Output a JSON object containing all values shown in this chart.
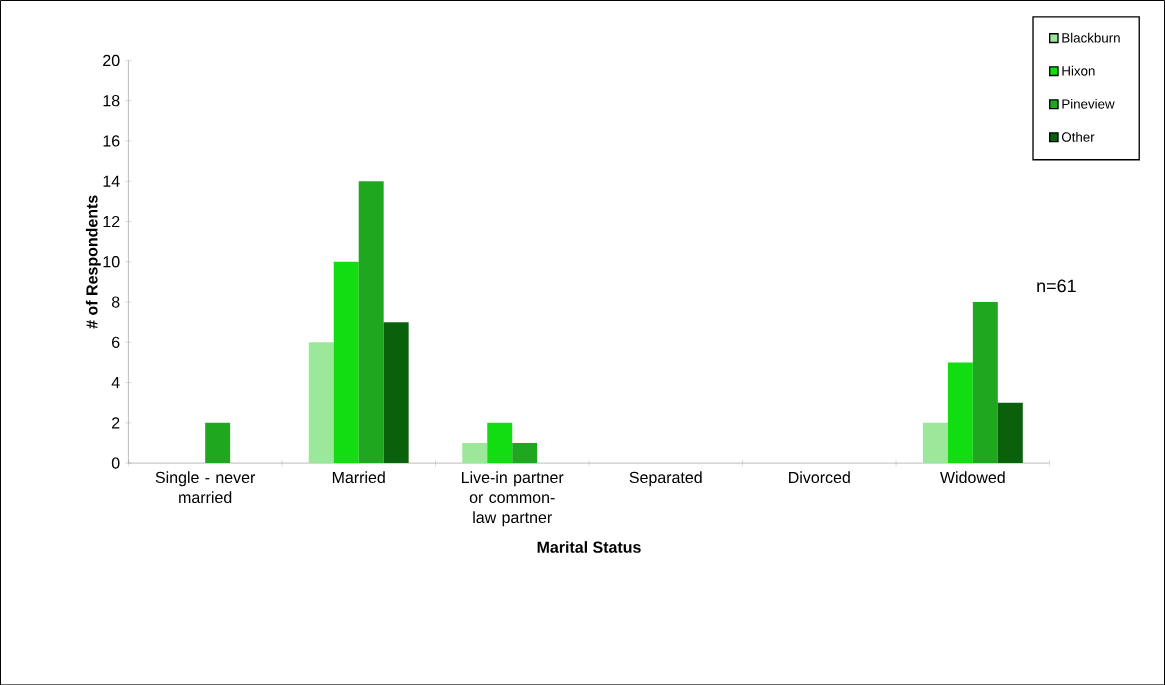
{
  "chart_data": {
    "type": "bar",
    "xlabel": "Marital Status",
    "ylabel": "# of Respondents",
    "categories": [
      "Single - never married",
      "Married",
      "Live-in partner or common-law partner",
      "Separated",
      "Divorced",
      "Widowed"
    ],
    "series": [
      {
        "name": "Blackburn",
        "color": "#9be89b",
        "values": [
          0,
          6,
          1,
          0,
          0,
          2
        ]
      },
      {
        "name": "Hixon",
        "color": "#11dd11",
        "values": [
          0,
          10,
          2,
          0,
          0,
          5
        ]
      },
      {
        "name": "Pineview",
        "color": "#1fa81f",
        "values": [
          2,
          14,
          1,
          0,
          0,
          8
        ]
      },
      {
        "name": "Other",
        "color": "#0b600b",
        "values": [
          0,
          7,
          0,
          0,
          0,
          3
        ]
      }
    ],
    "ylim": [
      0,
      20
    ],
    "yticks": [
      0,
      2,
      4,
      6,
      8,
      10,
      12,
      14,
      16,
      18,
      20
    ],
    "legend": "top right",
    "annotations": [
      "n=61"
    ]
  }
}
